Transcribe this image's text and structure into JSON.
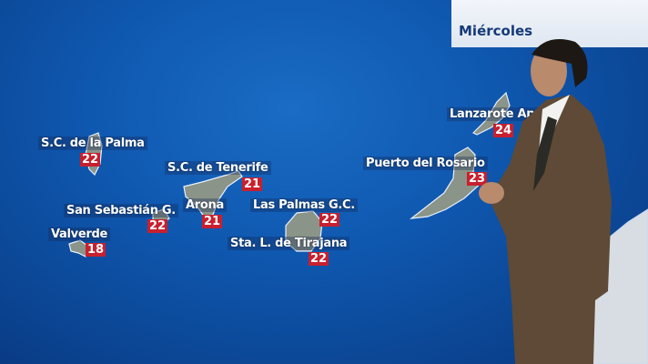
{
  "header": {
    "day": "Miércoles"
  },
  "colors": {
    "sea": "#0f58b0",
    "temp_badge": "#c8202e",
    "header_bg": "#eef2f8",
    "header_text": "#153a78"
  },
  "cities": [
    {
      "name": "S.C. de la Palma",
      "temp": "22"
    },
    {
      "name": "S.C. de Tenerife",
      "temp": "21"
    },
    {
      "name": "San Sebastián G.",
      "temp": "22"
    },
    {
      "name": "Arona",
      "temp": "21"
    },
    {
      "name": "Las Palmas G.C.",
      "temp": "22"
    },
    {
      "name": "Valverde",
      "temp": "18"
    },
    {
      "name": "Sta. L. de Tirajana",
      "temp": "22"
    },
    {
      "name": "Lanzarote Ap",
      "temp": "24"
    },
    {
      "name": "Puerto del Rosario",
      "temp": "23"
    }
  ]
}
